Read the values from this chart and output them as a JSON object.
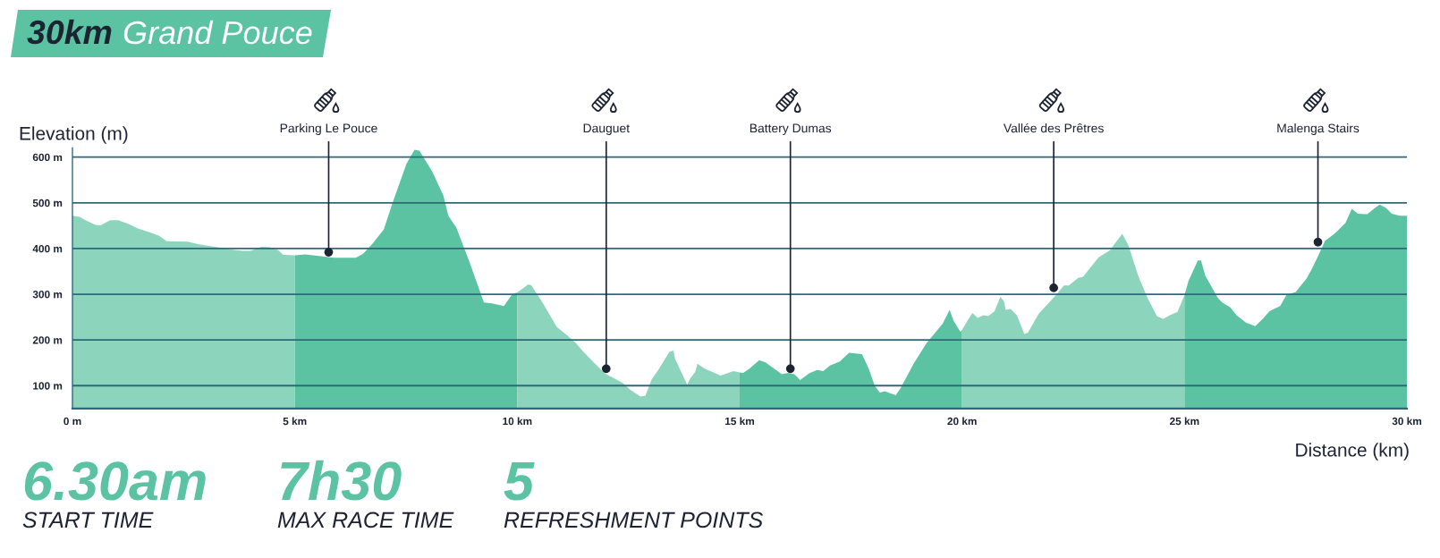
{
  "chart_data": {
    "type": "area",
    "title": "30km Grand Pouce",
    "xlabel": "Distance (km)",
    "ylabel": "Elevation (m)",
    "xlim": [
      0,
      30
    ],
    "xticks": [
      {
        "value": 0,
        "label": "0 m"
      },
      {
        "value": 5,
        "label": "5 km"
      },
      {
        "value": 10,
        "label": "10 km"
      },
      {
        "value": 15,
        "label": "15 km"
      },
      {
        "value": 20,
        "label": "20 km"
      },
      {
        "value": 25,
        "label": "25 km"
      },
      {
        "value": 30,
        "label": "30 km"
      }
    ],
    "ylim": [
      50,
      620
    ],
    "yticks": [
      {
        "value": 100,
        "label": "100 m"
      },
      {
        "value": 200,
        "label": "200 m"
      },
      {
        "value": 300,
        "label": "300 m"
      },
      {
        "value": 400,
        "label": "400 m"
      },
      {
        "value": 500,
        "label": "500 m"
      },
      {
        "value": 600,
        "label": "600 m"
      }
    ],
    "grid": "y",
    "series": [
      {
        "color": "#8cd4bc",
        "x": [
          0,
          0.17,
          0.31,
          0.53,
          0.64,
          0.85,
          1.03,
          1.25,
          1.47,
          1.69,
          1.94,
          2.12,
          2.59,
          2.84,
          3.21,
          3.49,
          3.82,
          4.0,
          4.25,
          4.44,
          4.62,
          4.74,
          5.0
        ],
        "values": [
          472,
          469,
          461,
          451,
          451,
          462,
          462,
          454,
          444,
          437,
          428,
          416,
          415,
          409,
          404,
          399,
          395,
          395,
          404,
          403,
          397,
          386,
          385
        ]
      },
      {
        "color": "#5bc3a2",
        "x": [
          5.0,
          5.23,
          5.59,
          5.88,
          6.37,
          6.53,
          6.75,
          7.0,
          7.19,
          7.51,
          7.69,
          7.8,
          8.09,
          8.34,
          8.45,
          8.63,
          8.92,
          9.25,
          9.43,
          9.7,
          9.88,
          10.0
        ],
        "values": [
          385,
          387,
          383,
          380,
          380,
          388,
          411,
          442,
          498,
          586,
          616,
          614,
          568,
          516,
          472,
          446,
          372,
          282,
          280,
          274,
          299,
          304
        ]
      },
      {
        "color": "#8cd4bc",
        "x": [
          10.0,
          10.24,
          10.31,
          10.53,
          10.89,
          11.11,
          11.32,
          11.47,
          11.72,
          11.97,
          12.37,
          12.55,
          12.77,
          12.88,
          13.02,
          13.17,
          13.42,
          13.51,
          13.55,
          13.82,
          13.89,
          14.0,
          14.05,
          14.21,
          14.39,
          14.57,
          14.86,
          15.0
        ],
        "values": [
          304,
          321,
          320,
          288,
          228,
          211,
          193,
          176,
          151,
          127,
          106,
          90,
          76,
          78,
          113,
          134,
          174,
          177,
          158,
          102,
          116,
          130,
          148,
          137,
          130,
          122,
          132,
          129
        ]
      },
      {
        "color": "#5bc3a2",
        "x": [
          15.0,
          15.08,
          15.22,
          15.44,
          15.58,
          15.95,
          16.09,
          16.23,
          16.36,
          16.56,
          16.74,
          16.88,
          17.03,
          17.25,
          17.46,
          17.75,
          17.9,
          18.04,
          18.15,
          18.26,
          18.51,
          18.62,
          18.91,
          19.2,
          19.56,
          19.72,
          19.81,
          19.96,
          20.0
        ],
        "values": [
          129,
          128,
          137,
          156,
          151,
          125,
          128,
          125,
          112,
          127,
          134,
          132,
          144,
          153,
          172,
          169,
          137,
          99,
          85,
          88,
          79,
          95,
          148,
          193,
          235,
          266,
          242,
          218,
          222
        ]
      },
      {
        "color": "#8cd4bc",
        "x": [
          20.0,
          20.09,
          20.23,
          20.35,
          20.48,
          20.59,
          20.73,
          20.86,
          20.94,
          20.98,
          21.09,
          21.23,
          21.4,
          21.48,
          21.72,
          22.11,
          22.29,
          22.4,
          22.61,
          22.72,
          23.07,
          23.32,
          23.6,
          23.74,
          23.96,
          24.17,
          24.38,
          24.52,
          24.67,
          24.84,
          25.0
        ],
        "values": [
          222,
          237,
          259,
          248,
          254,
          252,
          263,
          294,
          285,
          266,
          268,
          254,
          213,
          216,
          257,
          298,
          319,
          319,
          336,
          338,
          381,
          396,
          432,
          407,
          340,
          292,
          252,
          246,
          254,
          261,
          298
        ]
      },
      {
        "color": "#5bc3a2",
        "x": [
          25.0,
          25.09,
          25.3,
          25.37,
          25.47,
          25.75,
          25.86,
          26.03,
          26.17,
          26.38,
          26.59,
          26.77,
          26.91,
          27.15,
          27.29,
          27.5,
          27.74,
          27.85,
          27.99,
          28.16,
          28.37,
          28.62,
          28.76,
          28.9,
          29.11,
          29.28,
          29.39,
          29.53,
          29.66,
          29.84,
          30.0
        ],
        "values": [
          298,
          329,
          374,
          374,
          340,
          292,
          281,
          271,
          254,
          238,
          230,
          247,
          263,
          274,
          298,
          305,
          334,
          353,
          381,
          417,
          432,
          456,
          487,
          476,
          475,
          489,
          496,
          489,
          476,
          472,
          472
        ]
      }
    ],
    "annotations": [
      {
        "text": "Parking Le Pouce",
        "x": 5.76,
        "y": 392
      },
      {
        "text": "Dauguet",
        "x": 12.0,
        "y": 137
      },
      {
        "text": "Battery Dumas",
        "x": 16.14,
        "y": 137
      },
      {
        "text": "Vallée des Prêtres",
        "x": 22.06,
        "y": 314
      },
      {
        "text": "Malenga Stairs",
        "x": 28.0,
        "y": 414
      },
      "6.30am",
      "START TIME",
      "7h30",
      "MAX RACE TIME",
      "5",
      "REFRESHMENT POINTS"
    ]
  }
}
